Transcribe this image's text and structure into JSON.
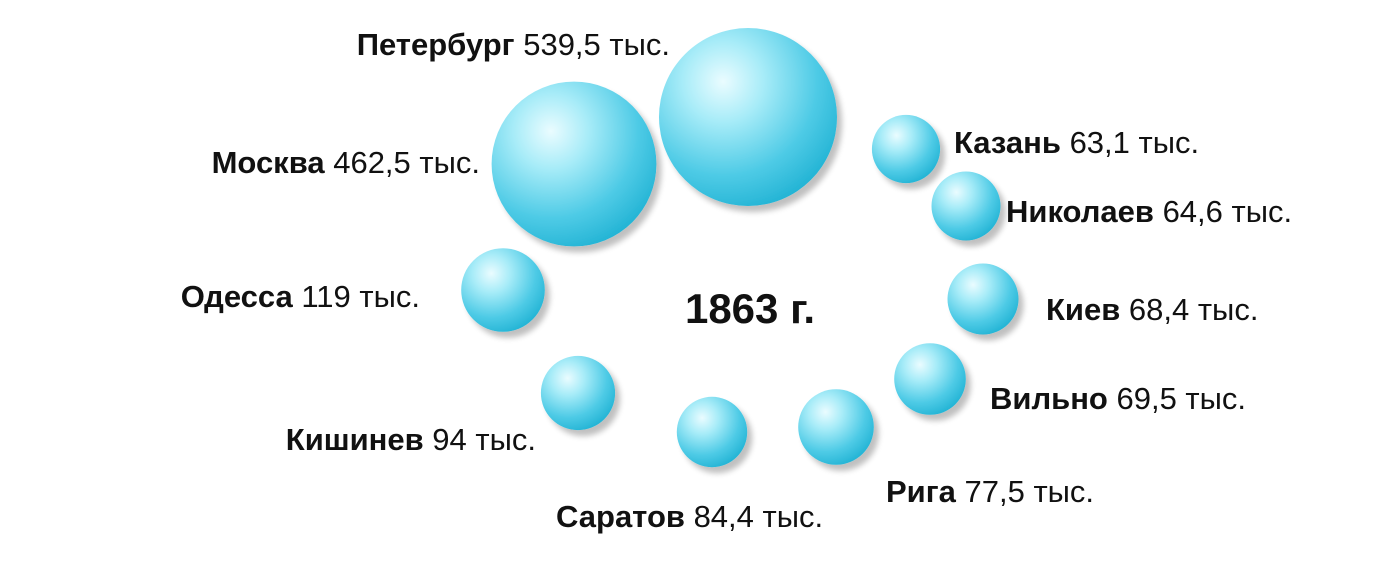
{
  "chart_data": {
    "type": "bubble",
    "title": "1863 г.",
    "unit": "тыс.",
    "colors": {
      "bubble_light": "#eafcff",
      "bubble_mid": "#7fe0f3",
      "bubble_dark": "#22b3d4",
      "text": "#111111"
    },
    "items": [
      {
        "name": "Петербург",
        "value": 539.5,
        "value_label": "539,5 тыс."
      },
      {
        "name": "Москва",
        "value": 462.5,
        "value_label": "462,5 тыс."
      },
      {
        "name": "Одесса",
        "value": 119,
        "value_label": "119 тыс."
      },
      {
        "name": "Кишинев",
        "value": 94,
        "value_label": "94 тыс."
      },
      {
        "name": "Саратов",
        "value": 84.4,
        "value_label": "84,4 тыс."
      },
      {
        "name": "Рига",
        "value": 77.5,
        "value_label": "77,5 тыс."
      },
      {
        "name": "Вильно",
        "value": 69.5,
        "value_label": "69,5 тыс."
      },
      {
        "name": "Киев",
        "value": 68.4,
        "value_label": "68,4 тыс."
      },
      {
        "name": "Николаев",
        "value": 64.6,
        "value_label": "64,6 тыс."
      },
      {
        "name": "Казань",
        "value": 63.1,
        "value_label": "63,1 тыс."
      }
    ]
  }
}
